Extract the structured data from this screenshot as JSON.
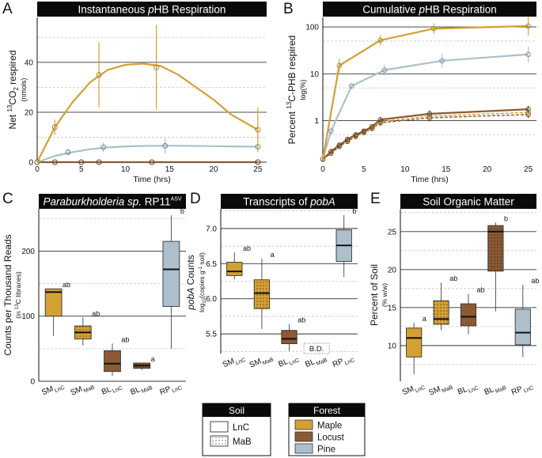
{
  "colors": {
    "maple": "#d4a033",
    "locust": "#8b5a35",
    "pine": "#adbfca",
    "title_bg": "#0a0a0a",
    "grid_major": "#333333",
    "grid_minor": "#c8c8c8",
    "maple_dark": "#a07820",
    "locust_dark": "#5c3a22",
    "pine_dark": "#6d7f8c"
  },
  "chart_data": [
    {
      "panel": "A",
      "type": "line",
      "title_parts": [
        "Instantaneous ",
        "p",
        "HB Respiration"
      ],
      "xlabel": "Time (hrs)",
      "ylabel_parts": [
        "Net ",
        "13",
        "CO",
        "2",
        " respired"
      ],
      "ylabel_units": "(nmols)",
      "xlim": [
        0,
        26
      ],
      "ylim": [
        0,
        58
      ],
      "xticks": [
        0,
        5,
        10,
        15,
        20,
        25
      ],
      "yticks": [
        0,
        20,
        40
      ],
      "series": [
        {
          "name": "Maple LnC",
          "color": "maple",
          "x": [
            0,
            2,
            7,
            13.5,
            25
          ],
          "y": [
            0,
            14,
            35,
            38,
            13
          ],
          "err": [
            0,
            3,
            13,
            17,
            9
          ],
          "curve_x": [
            0,
            2,
            4,
            6,
            8,
            10,
            12,
            14,
            16,
            18,
            20,
            22,
            24,
            25
          ],
          "curve_y": [
            0,
            14,
            24,
            32,
            37,
            39,
            39.5,
            38.5,
            35,
            30,
            25,
            19,
            15,
            13
          ]
        },
        {
          "name": "Pine LnC",
          "color": "pine",
          "x": [
            0,
            3.5,
            7.5,
            14.5,
            25
          ],
          "y": [
            0,
            4,
            6,
            6.5,
            6.2
          ],
          "err": [
            0,
            1,
            2,
            3,
            1
          ],
          "curve_x": [
            0,
            2,
            4,
            6,
            8,
            10,
            12,
            15,
            18,
            22,
            25
          ],
          "curve_y": [
            0,
            2.5,
            4,
            5.2,
            5.9,
            6.3,
            6.5,
            6.6,
            6.5,
            6.3,
            6.2
          ]
        },
        {
          "name": "Locust LnC",
          "color": "locust",
          "x": [
            0,
            2,
            5,
            7,
            13,
            25
          ],
          "y": [
            0,
            0,
            0,
            0,
            0,
            0
          ],
          "err": [
            0,
            0,
            0,
            0,
            0,
            0
          ],
          "curve_x": [
            0,
            25
          ],
          "curve_y": [
            0,
            0
          ]
        }
      ]
    },
    {
      "panel": "B",
      "type": "line",
      "title_parts": [
        "Cumulative ",
        "p",
        "HB Respiration"
      ],
      "xlabel": "Time (hrs)",
      "ylabel_parts": [
        "Percent ",
        "13",
        "C-PHB respired"
      ],
      "ylabel_units": "log(%)",
      "xlim": [
        0,
        26
      ],
      "ylim_log": [
        0.13,
        160
      ],
      "xticks": [
        0,
        5,
        10,
        15,
        20,
        25
      ],
      "yticks": [
        1,
        10,
        100
      ],
      "ytick_labels": [
        "1",
        "10",
        "100"
      ],
      "series": [
        {
          "name": "Maple LnC",
          "color": "maple",
          "dashed": false,
          "x": [
            0,
            2,
            7,
            13.5,
            25
          ],
          "y": [
            0.15,
            15,
            52,
            92,
            105
          ],
          "err": [
            0,
            1.4,
            1.3,
            1.3,
            1.6
          ]
        },
        {
          "name": "Pine LnC",
          "color": "pine",
          "dashed": false,
          "x": [
            0,
            1,
            3.5,
            7.5,
            14.5,
            25
          ],
          "y": [
            0.15,
            0.6,
            5.5,
            12,
            19,
            26
          ],
          "err": [
            0,
            1.1,
            1.1,
            1.3,
            1.4,
            1.5
          ]
        },
        {
          "name": "Locust LnC",
          "color": "locust",
          "dashed": false,
          "x": [
            0,
            1,
            2,
            3,
            4,
            5,
            6,
            7,
            13,
            25
          ],
          "y": [
            0.15,
            0.22,
            0.3,
            0.4,
            0.5,
            0.6,
            0.75,
            1.05,
            1.4,
            1.75
          ],
          "err": [
            0,
            1.1,
            1.1,
            1.1,
            1.1,
            1.1,
            1.1,
            1.15,
            1.2,
            1.2
          ]
        },
        {
          "name": "Maple MaB",
          "color": "maple",
          "dashed": true,
          "x": [
            0,
            1,
            2,
            3,
            4,
            5,
            6,
            7,
            13,
            25
          ],
          "y": [
            0.15,
            0.22,
            0.3,
            0.38,
            0.48,
            0.58,
            0.7,
            0.95,
            1.25,
            1.5
          ],
          "err": [
            0,
            1.1,
            1.1,
            1.1,
            1.1,
            1.1,
            1.1,
            1.15,
            1.2,
            1.2
          ]
        },
        {
          "name": "Locust MaB",
          "color": "locust",
          "dashed": true,
          "x": [
            0,
            1,
            2,
            3,
            4,
            5,
            6,
            7,
            13,
            25
          ],
          "y": [
            0.15,
            0.2,
            0.28,
            0.36,
            0.46,
            0.56,
            0.68,
            0.9,
            1.15,
            1.35
          ],
          "err": [
            0,
            1.1,
            1.1,
            1.1,
            1.1,
            1.1,
            1.1,
            1.15,
            1.2,
            1.2
          ]
        }
      ]
    },
    {
      "panel": "C",
      "type": "box",
      "title_parts": [
        "Paraburkholderia sp.",
        "RP11",
        "ASV"
      ],
      "ylabel": "Counts per Thousand Reads",
      "ylabel_units_parts": [
        "(in ",
        "13",
        "C libraries)"
      ],
      "ylim": [
        0,
        265
      ],
      "yticks": [
        0,
        100,
        200
      ],
      "yminor": [
        50,
        150,
        250
      ],
      "categories": [
        {
          "a": "SM",
          "b": "LnC"
        },
        {
          "a": "SM",
          "b": "MaB"
        },
        {
          "a": "BL",
          "b": "LnC"
        },
        {
          "a": "BL",
          "b": "MaB"
        },
        {
          "a": "RP",
          "b": "LnC"
        }
      ],
      "boxes": [
        {
          "color": "maple",
          "soil": "LnC",
          "min": 70,
          "q1": 100,
          "med": 137,
          "q3": 142,
          "max": 142,
          "letter": "ab"
        },
        {
          "color": "maple",
          "soil": "MaB",
          "min": 55,
          "q1": 65,
          "med": 75,
          "q3": 85,
          "max": 98,
          "letter": "ab"
        },
        {
          "color": "locust",
          "soil": "LnC",
          "min": 8,
          "q1": 15,
          "med": 27,
          "q3": 47,
          "max": 58,
          "letter": "ab"
        },
        {
          "color": "locust",
          "soil": "MaB",
          "min": 17,
          "q1": 20,
          "med": 24,
          "q3": 28,
          "max": 28,
          "letter": "a"
        },
        {
          "color": "pine",
          "soil": "LnC",
          "min": 50,
          "q1": 115,
          "med": 172,
          "q3": 215,
          "max": 255,
          "letter": "b"
        }
      ]
    },
    {
      "panel": "D",
      "type": "box",
      "title_parts": [
        "Transcripts of ",
        "pobA"
      ],
      "ylabel_parts": [
        "pobA",
        " Counts"
      ],
      "ylabel_units_parts": [
        "log",
        "10",
        "(copies g",
        "-1",
        " soil)"
      ],
      "ylim": [
        5.22,
        7.28
      ],
      "yticks": [
        5.5,
        6.0,
        6.5,
        7.0
      ],
      "ytick_labels": [
        "5.5",
        "6.0",
        "6.5",
        "7.0"
      ],
      "yminor": [
        5.25,
        5.75,
        6.25,
        6.75,
        7.25
      ],
      "categories": [
        {
          "a": "SM",
          "b": "LnC"
        },
        {
          "a": "SM",
          "b": "MaB"
        },
        {
          "a": "BL",
          "b": "LnC"
        },
        {
          "a": "BL",
          "b": "MaB"
        },
        {
          "a": "RP",
          "b": "LnC"
        }
      ],
      "boxes": [
        {
          "color": "maple",
          "soil": "LnC",
          "min": 6.28,
          "q1": 6.33,
          "med": 6.39,
          "q3": 6.52,
          "max": 6.66,
          "letter": "ab"
        },
        {
          "color": "maple",
          "soil": "MaB",
          "min": 5.57,
          "q1": 5.86,
          "med": 6.08,
          "q3": 6.27,
          "max": 6.57,
          "letter": "a"
        },
        {
          "color": "locust",
          "soil": "LnC",
          "min": 5.26,
          "q1": 5.36,
          "med": 5.43,
          "q3": 5.55,
          "max": 5.64,
          "letter": "ab"
        },
        {
          "color": "pine",
          "soil": "LnC",
          "min": 6.31,
          "q1": 6.53,
          "med": 6.76,
          "q3": 6.98,
          "max": 7.19,
          "letter": "b"
        }
      ],
      "bd_label": "B.D."
    },
    {
      "panel": "E",
      "type": "box",
      "title_parts": [
        "Soil Organic Matter"
      ],
      "ylabel": "Percent of Soil",
      "ylabel_units": "(% w/w)",
      "ylim": [
        5.3,
        28
      ],
      "yticks": [
        10,
        15,
        20,
        25
      ],
      "ytick_labels": [
        "10",
        "15",
        "20",
        "25"
      ],
      "yminor": [
        7.5,
        12.5,
        17.5,
        22.5,
        27.5
      ],
      "categories": [
        {
          "a": "SM",
          "b": "LnC"
        },
        {
          "a": "SM",
          "b": "MaB"
        },
        {
          "a": "BL",
          "b": "LnC"
        },
        {
          "a": "BL",
          "b": "MaB"
        },
        {
          "a": "RP",
          "b": "LnC"
        }
      ],
      "boxes": [
        {
          "color": "maple",
          "soil": "LnC",
          "min": 6.2,
          "q1": 8.5,
          "med": 11,
          "q3": 12.3,
          "max": 13,
          "letter": "a"
        },
        {
          "color": "maple",
          "soil": "MaB",
          "min": 12,
          "q1": 12.8,
          "med": 13.5,
          "q3": 15.9,
          "max": 18.3,
          "letter": "ab"
        },
        {
          "color": "locust",
          "soil": "LnC",
          "min": 11.5,
          "q1": 12.6,
          "med": 13.8,
          "q3": 15.5,
          "max": 16.8,
          "letter": "ab"
        },
        {
          "color": "locust",
          "soil": "MaB",
          "min": 14.5,
          "q1": 19.8,
          "med": 25,
          "q3": 25.8,
          "max": 26.2,
          "letter": "b"
        },
        {
          "color": "pine",
          "soil": "LnC",
          "min": 8.5,
          "q1": 10.1,
          "med": 11.7,
          "q3": 14.8,
          "max": 18,
          "letter": "ab"
        }
      ]
    }
  ],
  "panels": {
    "A": "A",
    "B": "B",
    "C": "C",
    "D": "D",
    "E": "E"
  },
  "legend": {
    "soil_title": "Soil",
    "soil_items": [
      "LnC",
      "MaB"
    ],
    "forest_title": "Forest",
    "forest_items": [
      {
        "label": "Maple",
        "color": "maple"
      },
      {
        "label": "Locust",
        "color": "locust"
      },
      {
        "label": "Pine",
        "color": "pine"
      }
    ]
  }
}
